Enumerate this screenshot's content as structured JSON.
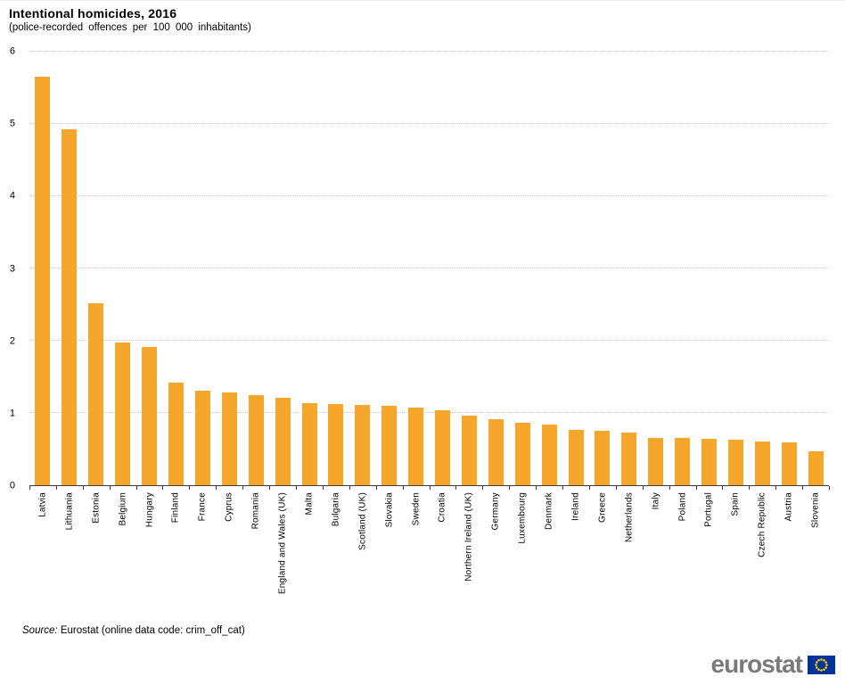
{
  "header": {
    "title": "Intentional homicides, 2016",
    "subtitle": "(police-recorded offences per 100 000 inhabitants)"
  },
  "chart_data": {
    "type": "bar",
    "title": "Intentional homicides, 2016",
    "subtitle": "(police-recorded offences per 100 000 inhabitants)",
    "categories": [
      "Latvia",
      "Lithuania",
      "Estonia",
      "Belgium",
      "Hungary",
      "Finland",
      "France",
      "Cyprus",
      "Romania",
      "England and Wales (UK)",
      "Malta",
      "Bulgaria",
      "Scotland (UK)",
      "Slovakia",
      "Sweden",
      "Croatia",
      "Northern Ireland (UK)",
      "Germany",
      "Luxembourg",
      "Denmark",
      "Ireland",
      "Greece",
      "Netherlands",
      "Italy",
      "Poland",
      "Portugal",
      "Spain",
      "Czech Republic",
      "Austria",
      "Slovenia"
    ],
    "values": [
      5.65,
      4.93,
      2.52,
      1.97,
      1.91,
      1.42,
      1.31,
      1.29,
      1.25,
      1.21,
      1.14,
      1.12,
      1.11,
      1.1,
      1.07,
      1.04,
      0.96,
      0.91,
      0.86,
      0.84,
      0.77,
      0.75,
      0.73,
      0.66,
      0.65,
      0.64,
      0.63,
      0.61,
      0.59,
      0.47
    ],
    "xlabel": "",
    "ylabel": "",
    "ylim": [
      0,
      6
    ],
    "yticks": [
      0,
      1,
      2,
      3,
      4,
      5,
      6
    ],
    "grid": true,
    "legend": false,
    "bar_color": "#F6A72B",
    "gridline_color": "#CCCCCC",
    "axis_color": "#3C3C3C"
  },
  "footer": {
    "source_label": "Source:",
    "source_text": "Eurostat (online data code: crim_off_cat)"
  },
  "logo": {
    "text": "eurostat",
    "text_color": "#7A7A7A",
    "flag_blue": "#003399",
    "star_yellow": "#FFCC00"
  }
}
